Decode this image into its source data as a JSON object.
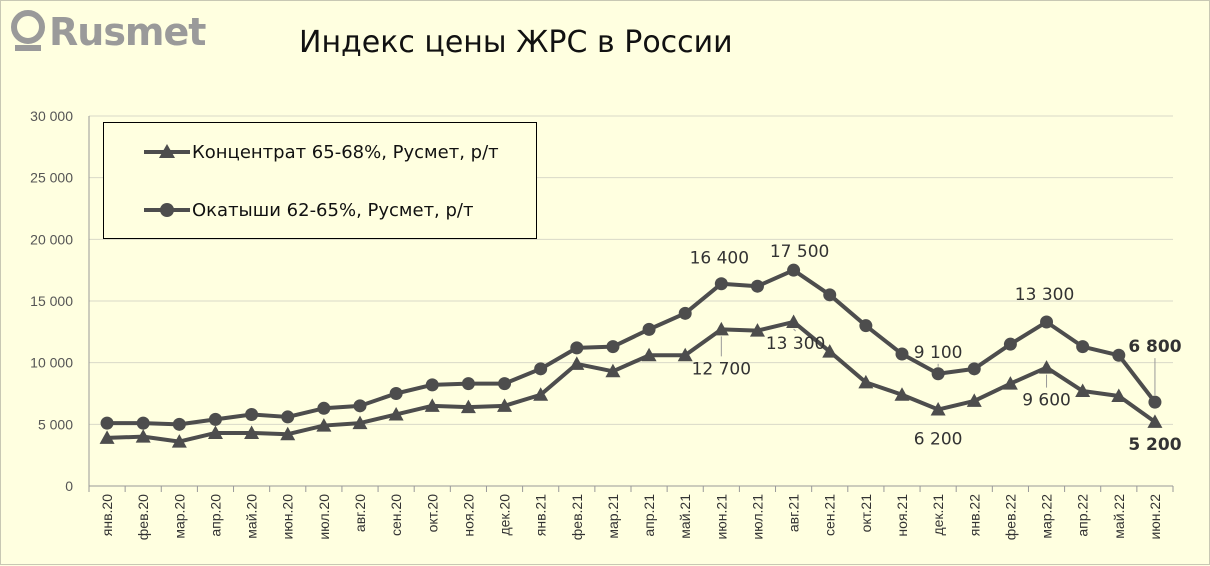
{
  "logo": {
    "text": "Rusmet"
  },
  "chart_data": {
    "type": "line",
    "title": "Индекс цены ЖРС в России",
    "xlabel": "",
    "ylabel": "",
    "ylim": [
      0,
      30000
    ],
    "yticks": [
      "0",
      "5 000",
      "10 000",
      "15 000",
      "20 000",
      "25 000",
      "30 000"
    ],
    "grid": true,
    "legend_position": "top-left",
    "categories": [
      "янв.20",
      "фев.20",
      "мар.20",
      "апр.20",
      "май.20",
      "июн.20",
      "июл.20",
      "авг.20",
      "сен.20",
      "окт.20",
      "ноя.20",
      "дек.20",
      "янв.21",
      "фев.21",
      "мар.21",
      "апр.21",
      "май.21",
      "июн.21",
      "июл.21",
      "авг.21",
      "сен.21",
      "окт.21",
      "ноя.21",
      "дек.21",
      "янв.22",
      "фев.22",
      "мар.22",
      "апр.22",
      "май.22",
      "июн.22"
    ],
    "series": [
      {
        "name": "Концентрат 65-68%, Русмет, р/т",
        "marker": "triangle",
        "color": "#4d4d4d",
        "values": [
          3900,
          4000,
          3600,
          4300,
          4300,
          4200,
          4900,
          5100,
          5800,
          6500,
          6400,
          6500,
          7400,
          9900,
          9300,
          10600,
          10600,
          12700,
          12600,
          13300,
          10900,
          8400,
          7400,
          6200,
          6900,
          8300,
          9600,
          7700,
          7300,
          5200
        ]
      },
      {
        "name": "Окатыши 62-65%, Русмет, р/т",
        "marker": "circle",
        "color": "#4d4d4d",
        "values": [
          5100,
          5100,
          5000,
          5400,
          5800,
          5600,
          6300,
          6500,
          7500,
          8200,
          8300,
          8300,
          9500,
          11200,
          11300,
          12700,
          14000,
          16400,
          16200,
          17500,
          15500,
          13000,
          10700,
          9100,
          9500,
          11500,
          13300,
          11300,
          10600,
          6800
        ]
      }
    ],
    "annotations": [
      {
        "series": 1,
        "index": 17,
        "text": "16 400",
        "bold": false
      },
      {
        "series": 1,
        "index": 19,
        "text": "17 500",
        "bold": false
      },
      {
        "series": 1,
        "index": 23,
        "text": "9 100",
        "bold": false
      },
      {
        "series": 1,
        "index": 26,
        "text": "13 300",
        "bold": false
      },
      {
        "series": 1,
        "index": 29,
        "text": "6 800",
        "bold": true
      },
      {
        "series": 0,
        "index": 17,
        "text": "12 700",
        "bold": false
      },
      {
        "series": 0,
        "index": 19,
        "text": "13 300",
        "bold": false
      },
      {
        "series": 0,
        "index": 23,
        "text": "6 200",
        "bold": false
      },
      {
        "series": 0,
        "index": 26,
        "text": "9 600",
        "bold": false
      },
      {
        "series": 0,
        "index": 29,
        "text": "5 200",
        "bold": true
      }
    ]
  }
}
